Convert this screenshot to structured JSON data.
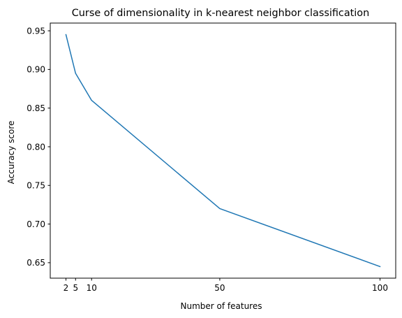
{
  "chart_data": {
    "type": "line",
    "title": "Curse of dimensionality in k-nearest neighbor classification",
    "xlabel": "Number of features",
    "ylabel": "Accuracy score",
    "x": [
      2,
      5,
      10,
      50,
      100
    ],
    "series": [
      {
        "values": [
          0.945,
          0.895,
          0.86,
          0.72,
          0.645
        ],
        "color": "#1f77b4"
      }
    ],
    "xlim": [
      -2.9,
      104.9
    ],
    "ylim": [
      0.63,
      0.96
    ],
    "xticks": [
      2,
      5,
      10,
      50,
      100
    ],
    "xtick_labels": [
      "2",
      "5",
      "10",
      "50",
      "100"
    ],
    "yticks": [
      0.65,
      0.7,
      0.75,
      0.8,
      0.85,
      0.9,
      0.95
    ],
    "ytick_labels": [
      "0.65",
      "0.70",
      "0.75",
      "0.80",
      "0.85",
      "0.90",
      "0.95"
    ],
    "grid": false,
    "legend": false
  }
}
